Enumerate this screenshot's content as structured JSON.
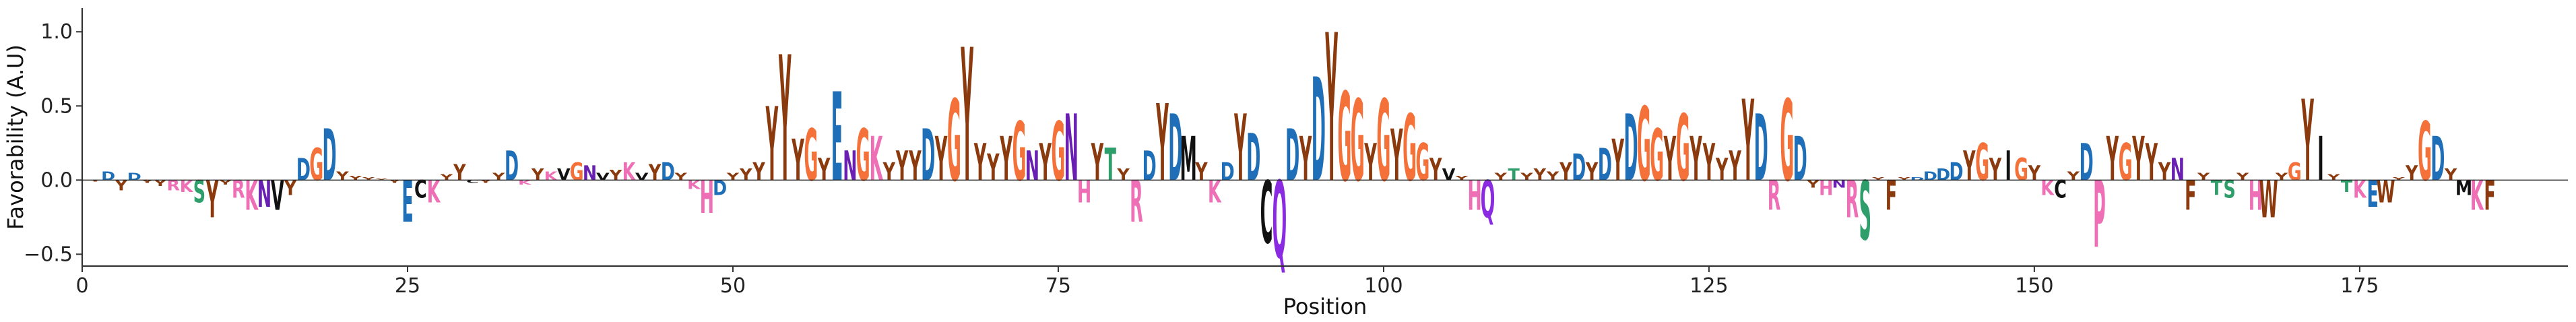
{
  "chart_data": {
    "type": "sequence-logo",
    "xlabel": "Position",
    "ylabel": "Favorability (A.U)",
    "xlim": [
      0,
      191
    ],
    "ylim": [
      -0.58,
      1.16
    ],
    "xticks": [
      "0",
      "25",
      "50",
      "75",
      "100",
      "125",
      "150",
      "175"
    ],
    "xtick_values": [
      0,
      25,
      50,
      75,
      100,
      125,
      150,
      175
    ],
    "yticks": [
      "−0.5",
      "0.0",
      "0.5",
      "1.0"
    ],
    "ytick_values": [
      -0.5,
      0.0,
      0.5,
      1.0
    ],
    "grid": false,
    "dominant_letter_colors": {
      "Y": "#8B3A0E",
      "G": "#F4713A",
      "D": "#1F6FB8",
      "E": "#1F6FB8",
      "N": "#6A1FB3",
      "Q": "#8A2BE2",
      "H": "#EE6FB6",
      "K": "#EE6FB6",
      "R": "#EE6FB6",
      "S": "#2E9E6B",
      "T": "#2E9E6B",
      "C": "#111111",
      "P": "#EE6FB6",
      "W": "#8B3A0E",
      "F": "#8B3A0E",
      "V": "#111111",
      "I": "#111111",
      "L": "#111111",
      "M": "#111111",
      "A": "#444444"
    },
    "positions": [
      {
        "x": 1,
        "letter": "Y",
        "value": -0.01
      },
      {
        "x": 2,
        "letter": "D",
        "value": 0.06
      },
      {
        "x": 3,
        "letter": "Y",
        "value": -0.07
      },
      {
        "x": 4,
        "letter": "D",
        "value": 0.05
      },
      {
        "x": 5,
        "letter": "Y",
        "value": -0.02
      },
      {
        "x": 6,
        "letter": "Y",
        "value": -0.04
      },
      {
        "x": 7,
        "letter": "R",
        "value": -0.07
      },
      {
        "x": 8,
        "letter": "K",
        "value": -0.08
      },
      {
        "x": 9,
        "letter": "S",
        "value": -0.15
      },
      {
        "x": 10,
        "letter": "Y",
        "value": -0.25
      },
      {
        "x": 11,
        "letter": "Y",
        "value": -0.03
      },
      {
        "x": 12,
        "letter": "R",
        "value": -0.12
      },
      {
        "x": 13,
        "letter": "K",
        "value": -0.2
      },
      {
        "x": 14,
        "letter": "N",
        "value": -0.18
      },
      {
        "x": 15,
        "letter": "V",
        "value": -0.2
      },
      {
        "x": 16,
        "letter": "Y",
        "value": -0.1
      },
      {
        "x": 17,
        "letter": "D",
        "value": 0.15
      },
      {
        "x": 18,
        "letter": "G",
        "value": 0.22
      },
      {
        "x": 19,
        "letter": "D",
        "value": 0.35
      },
      {
        "x": 20,
        "letter": "Y",
        "value": 0.06
      },
      {
        "x": 21,
        "letter": "Y",
        "value": 0.03
      },
      {
        "x": 22,
        "letter": "Y",
        "value": 0.02
      },
      {
        "x": 23,
        "letter": "Y",
        "value": 0.01
      },
      {
        "x": 24,
        "letter": "Y",
        "value": -0.02
      },
      {
        "x": 25,
        "letter": "E",
        "value": -0.28
      },
      {
        "x": 26,
        "letter": "C",
        "value": -0.12
      },
      {
        "x": 27,
        "letter": "K",
        "value": -0.15
      },
      {
        "x": 28,
        "letter": "Y",
        "value": 0.04
      },
      {
        "x": 29,
        "letter": "Y",
        "value": 0.11
      },
      {
        "x": 30,
        "letter": "C",
        "value": -0.02
      },
      {
        "x": 31,
        "letter": "Y",
        "value": -0.02
      },
      {
        "x": 32,
        "letter": "Y",
        "value": 0.05
      },
      {
        "x": 33,
        "letter": "D",
        "value": 0.2
      },
      {
        "x": 34,
        "letter": "K",
        "value": -0.03
      },
      {
        "x": 35,
        "letter": "Y",
        "value": 0.08
      },
      {
        "x": 36,
        "letter": "K",
        "value": 0.06
      },
      {
        "x": 37,
        "letter": "V",
        "value": 0.08
      },
      {
        "x": 38,
        "letter": "G",
        "value": 0.12
      },
      {
        "x": 39,
        "letter": "N",
        "value": 0.1
      },
      {
        "x": 40,
        "letter": "V",
        "value": 0.05
      },
      {
        "x": 41,
        "letter": "Y",
        "value": 0.07
      },
      {
        "x": 42,
        "letter": "K",
        "value": 0.12
      },
      {
        "x": 43,
        "letter": "V",
        "value": 0.05
      },
      {
        "x": 44,
        "letter": "Y",
        "value": 0.11
      },
      {
        "x": 45,
        "letter": "D",
        "value": 0.12
      },
      {
        "x": 46,
        "letter": "Y",
        "value": 0.05
      },
      {
        "x": 47,
        "letter": "K",
        "value": -0.06
      },
      {
        "x": 48,
        "letter": "H",
        "value": -0.22
      },
      {
        "x": 49,
        "letter": "D",
        "value": -0.1
      },
      {
        "x": 50,
        "letter": "Y",
        "value": 0.05
      },
      {
        "x": 51,
        "letter": "Y",
        "value": 0.08
      },
      {
        "x": 52,
        "letter": "Y",
        "value": 0.12
      },
      {
        "x": 53,
        "letter": "Y",
        "value": 0.5
      },
      {
        "x": 54,
        "letter": "Y",
        "value": 0.85
      },
      {
        "x": 55,
        "letter": "Y",
        "value": 0.28
      },
      {
        "x": 56,
        "letter": "G",
        "value": 0.35
      },
      {
        "x": 57,
        "letter": "Y",
        "value": 0.15
      },
      {
        "x": 58,
        "letter": "E",
        "value": 0.6
      },
      {
        "x": 59,
        "letter": "N",
        "value": 0.2
      },
      {
        "x": 60,
        "letter": "G",
        "value": 0.35
      },
      {
        "x": 61,
        "letter": "K",
        "value": 0.3
      },
      {
        "x": 62,
        "letter": "Y",
        "value": 0.12
      },
      {
        "x": 63,
        "letter": "Y",
        "value": 0.2
      },
      {
        "x": 64,
        "letter": "Y",
        "value": 0.2
      },
      {
        "x": 65,
        "letter": "D",
        "value": 0.35
      },
      {
        "x": 66,
        "letter": "Y",
        "value": 0.3
      },
      {
        "x": 67,
        "letter": "G",
        "value": 0.55
      },
      {
        "x": 68,
        "letter": "Y",
        "value": 0.9
      },
      {
        "x": 69,
        "letter": "Y",
        "value": 0.25
      },
      {
        "x": 70,
        "letter": "Y",
        "value": 0.18
      },
      {
        "x": 71,
        "letter": "Y",
        "value": 0.3
      },
      {
        "x": 72,
        "letter": "G",
        "value": 0.4
      },
      {
        "x": 73,
        "letter": "N",
        "value": 0.2
      },
      {
        "x": 74,
        "letter": "Y",
        "value": 0.25
      },
      {
        "x": 75,
        "letter": "G",
        "value": 0.4
      },
      {
        "x": 76,
        "letter": "N",
        "value": 0.45
      },
      {
        "x": 77,
        "letter": "H",
        "value": -0.15
      },
      {
        "x": 78,
        "letter": "Y",
        "value": 0.25
      },
      {
        "x": 79,
        "letter": "T",
        "value": 0.22
      },
      {
        "x": 80,
        "letter": "Y",
        "value": 0.08
      },
      {
        "x": 81,
        "letter": "R",
        "value": -0.28
      },
      {
        "x": 82,
        "letter": "D",
        "value": 0.2
      },
      {
        "x": 83,
        "letter": "Y",
        "value": 0.52
      },
      {
        "x": 84,
        "letter": "D",
        "value": 0.45
      },
      {
        "x": 85,
        "letter": "M",
        "value": 0.3
      },
      {
        "x": 86,
        "letter": "Y",
        "value": 0.12
      },
      {
        "x": 87,
        "letter": "K",
        "value": -0.15
      },
      {
        "x": 88,
        "letter": "D",
        "value": 0.12
      },
      {
        "x": 89,
        "letter": "Y",
        "value": 0.45
      },
      {
        "x": 90,
        "letter": "D",
        "value": 0.32
      },
      {
        "x": 91,
        "letter": "C",
        "value": -0.42
      },
      {
        "x": 92,
        "letter": "Q",
        "value": -0.52
      },
      {
        "x": 93,
        "letter": "D",
        "value": 0.35
      },
      {
        "x": 94,
        "letter": "Y",
        "value": 0.3
      },
      {
        "x": 95,
        "letter": "D",
        "value": 0.7
      },
      {
        "x": 96,
        "letter": "Y",
        "value": 1.0
      },
      {
        "x": 97,
        "letter": "G",
        "value": 0.6
      },
      {
        "x": 98,
        "letter": "G",
        "value": 0.55
      },
      {
        "x": 99,
        "letter": "Y",
        "value": 0.25
      },
      {
        "x": 100,
        "letter": "G",
        "value": 0.55
      },
      {
        "x": 101,
        "letter": "Y",
        "value": 0.35
      },
      {
        "x": 102,
        "letter": "G",
        "value": 0.45
      },
      {
        "x": 103,
        "letter": "G",
        "value": 0.25
      },
      {
        "x": 104,
        "letter": "Y",
        "value": 0.15
      },
      {
        "x": 105,
        "letter": "V",
        "value": 0.08
      },
      {
        "x": 106,
        "letter": "Y",
        "value": 0.03
      },
      {
        "x": 107,
        "letter": "H",
        "value": -0.2
      },
      {
        "x": 108,
        "letter": "Q",
        "value": -0.25
      },
      {
        "x": 109,
        "letter": "Y",
        "value": 0.05
      },
      {
        "x": 110,
        "letter": "T",
        "value": 0.08
      },
      {
        "x": 111,
        "letter": "Y",
        "value": 0.05
      },
      {
        "x": 112,
        "letter": "Y",
        "value": 0.08
      },
      {
        "x": 113,
        "letter": "Y",
        "value": 0.06
      },
      {
        "x": 114,
        "letter": "Y",
        "value": 0.12
      },
      {
        "x": 115,
        "letter": "D",
        "value": 0.18
      },
      {
        "x": 116,
        "letter": "Y",
        "value": 0.12
      },
      {
        "x": 117,
        "letter": "D",
        "value": 0.22
      },
      {
        "x": 118,
        "letter": "Y",
        "value": 0.28
      },
      {
        "x": 119,
        "letter": "D",
        "value": 0.45
      },
      {
        "x": 120,
        "letter": "G",
        "value": 0.5
      },
      {
        "x": 121,
        "letter": "G",
        "value": 0.35
      },
      {
        "x": 122,
        "letter": "Y",
        "value": 0.3
      },
      {
        "x": 123,
        "letter": "G",
        "value": 0.45
      },
      {
        "x": 124,
        "letter": "Y",
        "value": 0.3
      },
      {
        "x": 125,
        "letter": "Y",
        "value": 0.25
      },
      {
        "x": 126,
        "letter": "Y",
        "value": 0.15
      },
      {
        "x": 127,
        "letter": "Y",
        "value": 0.2
      },
      {
        "x": 128,
        "letter": "Y",
        "value": 0.55
      },
      {
        "x": 129,
        "letter": "D",
        "value": 0.45
      },
      {
        "x": 130,
        "letter": "R",
        "value": -0.2
      },
      {
        "x": 131,
        "letter": "G",
        "value": 0.55
      },
      {
        "x": 132,
        "letter": "D",
        "value": 0.3
      },
      {
        "x": 133,
        "letter": "Y",
        "value": -0.05
      },
      {
        "x": 134,
        "letter": "H",
        "value": -0.1
      },
      {
        "x": 135,
        "letter": "N",
        "value": -0.05
      },
      {
        "x": 136,
        "letter": "R",
        "value": -0.25
      },
      {
        "x": 137,
        "letter": "S",
        "value": -0.4
      },
      {
        "x": 138,
        "letter": "Y",
        "value": 0.02
      },
      {
        "x": 139,
        "letter": "F",
        "value": -0.2
      },
      {
        "x": 140,
        "letter": "Y",
        "value": 0.02
      },
      {
        "x": 141,
        "letter": "D",
        "value": 0.02
      },
      {
        "x": 142,
        "letter": "D",
        "value": 0.06
      },
      {
        "x": 143,
        "letter": "D",
        "value": 0.08
      },
      {
        "x": 144,
        "letter": "D",
        "value": 0.12
      },
      {
        "x": 145,
        "letter": "Y",
        "value": 0.2
      },
      {
        "x": 146,
        "letter": "G",
        "value": 0.25
      },
      {
        "x": 147,
        "letter": "Y",
        "value": 0.15
      },
      {
        "x": 148,
        "letter": "I",
        "value": 0.2
      },
      {
        "x": 149,
        "letter": "G",
        "value": 0.15
      },
      {
        "x": 150,
        "letter": "Y",
        "value": 0.1
      },
      {
        "x": 151,
        "letter": "K",
        "value": -0.1
      },
      {
        "x": 152,
        "letter": "C",
        "value": -0.12
      },
      {
        "x": 153,
        "letter": "Y",
        "value": 0.06
      },
      {
        "x": 154,
        "letter": "D",
        "value": 0.25
      },
      {
        "x": 155,
        "letter": "P",
        "value": -0.45
      },
      {
        "x": 156,
        "letter": "Y",
        "value": 0.3
      },
      {
        "x": 157,
        "letter": "G",
        "value": 0.25
      },
      {
        "x": 158,
        "letter": "Y",
        "value": 0.3
      },
      {
        "x": 159,
        "letter": "Y",
        "value": 0.25
      },
      {
        "x": 160,
        "letter": "Y",
        "value": 0.12
      },
      {
        "x": 161,
        "letter": "N",
        "value": 0.15
      },
      {
        "x": 162,
        "letter": "F",
        "value": -0.2
      },
      {
        "x": 163,
        "letter": "Y",
        "value": 0.05
      },
      {
        "x": 164,
        "letter": "T",
        "value": -0.1
      },
      {
        "x": 165,
        "letter": "S",
        "value": -0.12
      },
      {
        "x": 166,
        "letter": "Y",
        "value": 0.05
      },
      {
        "x": 167,
        "letter": "H",
        "value": -0.2
      },
      {
        "x": 168,
        "letter": "W",
        "value": -0.25
      },
      {
        "x": 169,
        "letter": "Y",
        "value": 0.05
      },
      {
        "x": 170,
        "letter": "G",
        "value": 0.12
      },
      {
        "x": 171,
        "letter": "Y",
        "value": 0.55
      },
      {
        "x": 172,
        "letter": "I",
        "value": 0.3
      },
      {
        "x": 173,
        "letter": "Y",
        "value": 0.04
      },
      {
        "x": 174,
        "letter": "T",
        "value": -0.08
      },
      {
        "x": 175,
        "letter": "K",
        "value": -0.12
      },
      {
        "x": 176,
        "letter": "E",
        "value": -0.18
      },
      {
        "x": 177,
        "letter": "W",
        "value": -0.15
      },
      {
        "x": 178,
        "letter": "Y",
        "value": 0.02
      },
      {
        "x": 179,
        "letter": "Y",
        "value": 0.1
      },
      {
        "x": 180,
        "letter": "G",
        "value": 0.4
      },
      {
        "x": 181,
        "letter": "D",
        "value": 0.3
      },
      {
        "x": 182,
        "letter": "Y",
        "value": 0.08
      },
      {
        "x": 183,
        "letter": "M",
        "value": -0.1
      },
      {
        "x": 184,
        "letter": "K",
        "value": -0.2
      },
      {
        "x": 185,
        "letter": "F",
        "value": -0.2
      }
    ]
  }
}
